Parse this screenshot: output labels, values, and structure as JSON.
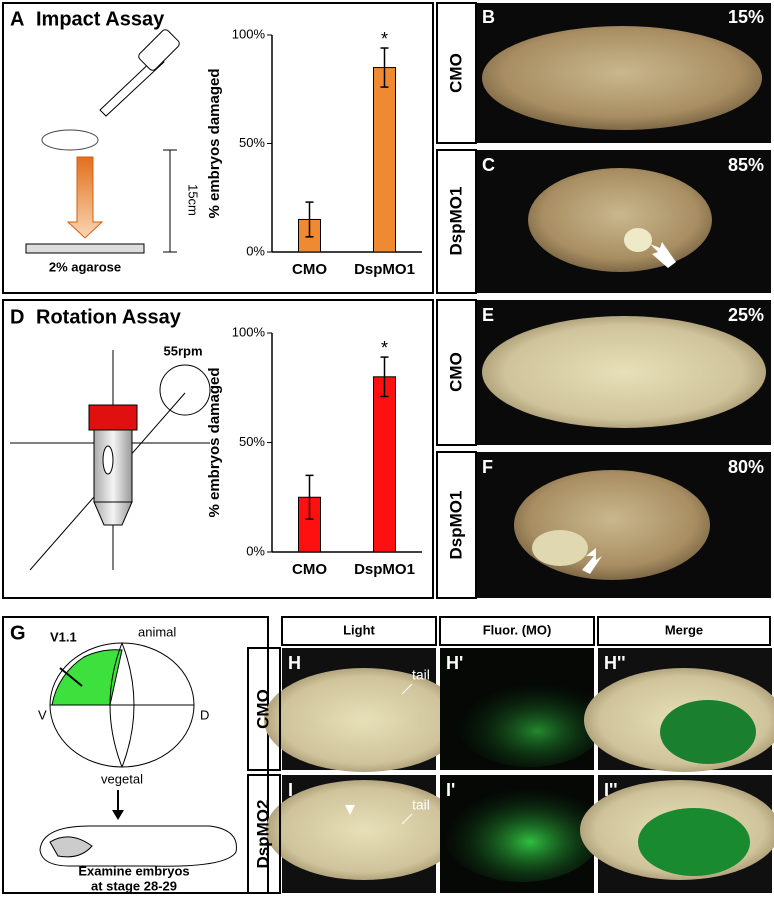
{
  "panels": {
    "A": {
      "label": "A",
      "title": "Impact Assay",
      "height_label": "15cm",
      "surface_label": "2% agarose"
    },
    "B": {
      "label": "B",
      "row": "CMO",
      "percent": "15%"
    },
    "C": {
      "label": "C",
      "row": "DspMO1",
      "percent": "85%"
    },
    "D": {
      "label": "D",
      "title": "Rotation Assay",
      "speed_label": "55rpm"
    },
    "E": {
      "label": "E",
      "row": "CMO",
      "percent": "25%"
    },
    "F": {
      "label": "F",
      "row": "DspMO1",
      "percent": "80%"
    },
    "G": {
      "label": "G",
      "region": "V1.1",
      "top": "animal",
      "left": "V",
      "right": "D",
      "bottom": "vegetal",
      "caption": [
        "Examine embryos",
        "at stage 28-29"
      ]
    },
    "grid": {
      "columns": [
        "Light",
        "Fluor. (MO)",
        "Merge"
      ],
      "rows": [
        {
          "label": "CMO",
          "panels": [
            "H",
            "H'",
            "H''"
          ],
          "tail": "tail"
        },
        {
          "label": "DspMO2",
          "panels": [
            "I",
            "I'",
            "I''"
          ],
          "tail": "tail"
        }
      ]
    }
  },
  "chart_data": [
    {
      "type": "bar",
      "y_label": "% embryos damaged",
      "categories": [
        "CMO",
        "DspMO1"
      ],
      "values": [
        15,
        85
      ],
      "errors": [
        8,
        9
      ],
      "significance": [
        null,
        "*"
      ],
      "color": "#f08a32",
      "ylim": [
        0,
        100
      ],
      "yticks": [
        {
          "value": 0,
          "label": "0%"
        },
        {
          "value": 50,
          "label": "50%"
        },
        {
          "value": 100,
          "label": "100%"
        }
      ]
    },
    {
      "type": "bar",
      "y_label": "% embryos damaged",
      "categories": [
        "CMO",
        "DspMO1"
      ],
      "values": [
        25,
        80
      ],
      "errors": [
        10,
        9
      ],
      "significance": [
        null,
        "*"
      ],
      "color": "#ff1010",
      "ylim": [
        0,
        100
      ],
      "yticks": [
        {
          "value": 0,
          "label": "0%"
        },
        {
          "value": 50,
          "label": "50%"
        },
        {
          "value": 100,
          "label": "100%"
        }
      ]
    }
  ]
}
